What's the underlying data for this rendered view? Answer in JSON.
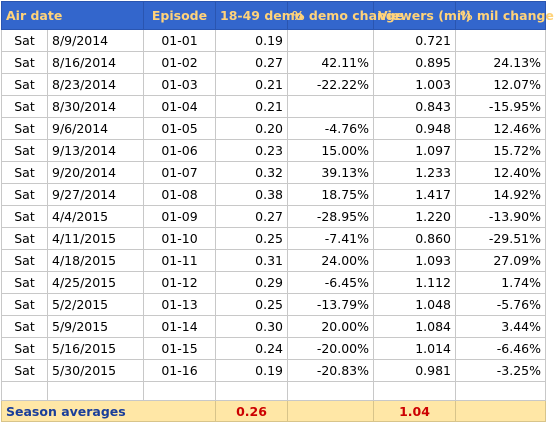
{
  "headers": {
    "air_date": "Air date",
    "episode": "Episode",
    "demo": "18-49 demo",
    "demo_change": "% demo change",
    "viewers": "Viewers (mil)",
    "mil_change": "% mil change"
  },
  "rows": [
    {
      "day": "Sat",
      "date": "8/9/2014",
      "episode": "01-01",
      "demo": "0.19",
      "demo_change": "",
      "viewers": "0.721",
      "mil_change": ""
    },
    {
      "day": "Sat",
      "date": "8/16/2014",
      "episode": "01-02",
      "demo": "0.27",
      "demo_change": "42.11%",
      "viewers": "0.895",
      "mil_change": "24.13%"
    },
    {
      "day": "Sat",
      "date": "8/23/2014",
      "episode": "01-03",
      "demo": "0.21",
      "demo_change": "-22.22%",
      "viewers": "1.003",
      "mil_change": "12.07%"
    },
    {
      "day": "Sat",
      "date": "8/30/2014",
      "episode": "01-04",
      "demo": "0.21",
      "demo_change": "",
      "viewers": "0.843",
      "mil_change": "-15.95%"
    },
    {
      "day": "Sat",
      "date": "9/6/2014",
      "episode": "01-05",
      "demo": "0.20",
      "demo_change": "-4.76%",
      "viewers": "0.948",
      "mil_change": "12.46%"
    },
    {
      "day": "Sat",
      "date": "9/13/2014",
      "episode": "01-06",
      "demo": "0.23",
      "demo_change": "15.00%",
      "viewers": "1.097",
      "mil_change": "15.72%"
    },
    {
      "day": "Sat",
      "date": "9/20/2014",
      "episode": "01-07",
      "demo": "0.32",
      "demo_change": "39.13%",
      "viewers": "1.233",
      "mil_change": "12.40%"
    },
    {
      "day": "Sat",
      "date": "9/27/2014",
      "episode": "01-08",
      "demo": "0.38",
      "demo_change": "18.75%",
      "viewers": "1.417",
      "mil_change": "14.92%"
    },
    {
      "day": "Sat",
      "date": "4/4/2015",
      "episode": "01-09",
      "demo": "0.27",
      "demo_change": "-28.95%",
      "viewers": "1.220",
      "mil_change": "-13.90%"
    },
    {
      "day": "Sat",
      "date": "4/11/2015",
      "episode": "01-10",
      "demo": "0.25",
      "demo_change": "-7.41%",
      "viewers": "0.860",
      "mil_change": "-29.51%"
    },
    {
      "day": "Sat",
      "date": "4/18/2015",
      "episode": "01-11",
      "demo": "0.31",
      "demo_change": "24.00%",
      "viewers": "1.093",
      "mil_change": "27.09%"
    },
    {
      "day": "Sat",
      "date": "4/25/2015",
      "episode": "01-12",
      "demo": "0.29",
      "demo_change": "-6.45%",
      "viewers": "1.112",
      "mil_change": "1.74%"
    },
    {
      "day": "Sat",
      "date": "5/2/2015",
      "episode": "01-13",
      "demo": "0.25",
      "demo_change": "-13.79%",
      "viewers": "1.048",
      "mil_change": "-5.76%"
    },
    {
      "day": "Sat",
      "date": "5/9/2015",
      "episode": "01-14",
      "demo": "0.30",
      "demo_change": "20.00%",
      "viewers": "1.084",
      "mil_change": "3.44%"
    },
    {
      "day": "Sat",
      "date": "5/16/2015",
      "episode": "01-15",
      "demo": "0.24",
      "demo_change": "-20.00%",
      "viewers": "1.014",
      "mil_change": "-6.46%"
    },
    {
      "day": "Sat",
      "date": "5/30/2015",
      "episode": "01-16",
      "demo": "0.19",
      "demo_change": "-20.83%",
      "viewers": "0.981",
      "mil_change": "-3.25%"
    }
  ],
  "averages": {
    "label": "Season averages",
    "demo": "0.26",
    "viewers": "1.04"
  },
  "colors": {
    "header_bg": "#3366cc",
    "header_text": "#ffd37a",
    "avg_bg": "#ffe7a6",
    "avg_label": "#1a3e9a",
    "avg_value": "#cc0000"
  }
}
